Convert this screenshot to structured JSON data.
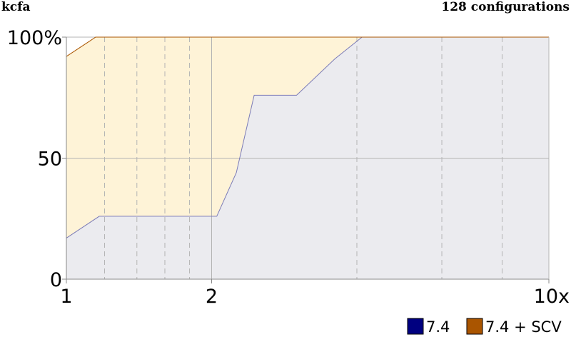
{
  "header": {
    "left": "kcfa",
    "right": "128 configurations"
  },
  "chart_data": {
    "type": "area",
    "title": "kcfa",
    "subtitle": "128 configurations",
    "xlabel": "",
    "ylabel": "",
    "x_scale": "log",
    "xlim": [
      1,
      10
    ],
    "ylim": [
      0,
      100
    ],
    "y_ticks": [
      {
        "value": 0,
        "label": "0"
      },
      {
        "value": 50,
        "label": "50"
      },
      {
        "value": 100,
        "label": "100%"
      }
    ],
    "x_ticks": [
      {
        "value": 1,
        "label": "1"
      },
      {
        "value": 2,
        "label": "2"
      },
      {
        "value": 10,
        "label": "10x"
      }
    ],
    "x_minor_ticks": [
      1.2,
      1.4,
      1.6,
      1.8,
      4,
      6,
      8
    ],
    "grid": true,
    "legend_position": "bottom-right",
    "series": [
      {
        "name": "7.4",
        "color": "#000080",
        "fill": "#ebebef",
        "line": "#7b7bb7",
        "points": [
          [
            1.0,
            17
          ],
          [
            1.17,
            26
          ],
          [
            1.2,
            26
          ],
          [
            1.4,
            26
          ],
          [
            1.6,
            26
          ],
          [
            1.8,
            26
          ],
          [
            2.0,
            26
          ],
          [
            2.05,
            26
          ],
          [
            2.25,
            44
          ],
          [
            2.45,
            76
          ],
          [
            3.0,
            76
          ],
          [
            3.6,
            91
          ],
          [
            4.1,
            100
          ],
          [
            10.0,
            100
          ]
        ]
      },
      {
        "name": "7.4 + SCV",
        "color": "#aa5500",
        "fill": "#fef3d7",
        "line": "#aa5500",
        "points": [
          [
            1.0,
            92
          ],
          [
            1.15,
            100
          ],
          [
            10.0,
            100
          ]
        ]
      }
    ]
  }
}
